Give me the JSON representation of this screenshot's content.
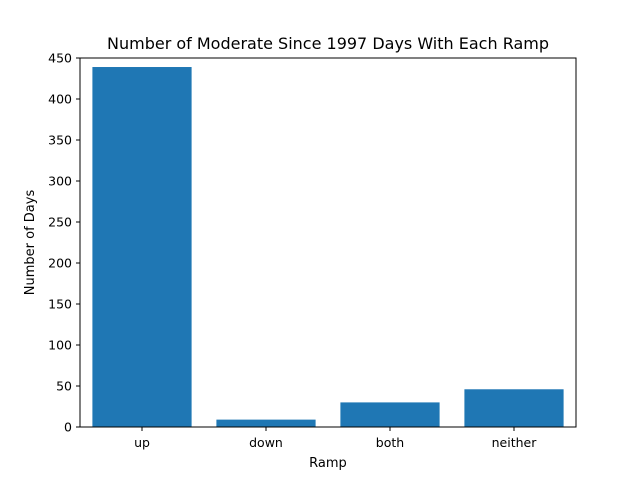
{
  "chart_data": {
    "type": "bar",
    "title": "Number of Moderate Since 1997 Days With Each Ramp",
    "xlabel": "Ramp",
    "ylabel": "Number of Days",
    "categories": [
      "up",
      "down",
      "both",
      "neither"
    ],
    "values": [
      439,
      9,
      30,
      46
    ],
    "ylim": [
      0,
      450
    ],
    "yticks": [
      0,
      50,
      100,
      150,
      200,
      250,
      300,
      350,
      400,
      450
    ],
    "grid": false,
    "bar_color": "#1f77b4"
  }
}
